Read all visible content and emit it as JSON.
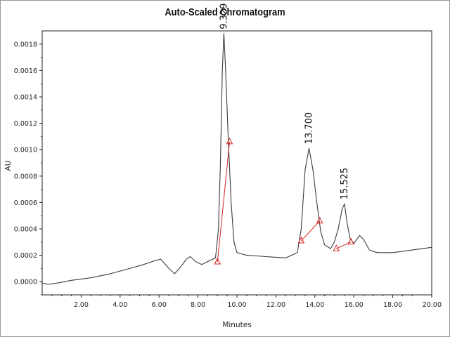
{
  "chart_data": {
    "type": "line",
    "title": "Auto-Scaled Chromatogram",
    "xlabel": "Minutes",
    "ylabel": "AU",
    "xlim": [
      0,
      20
    ],
    "ylim": [
      -0.0001,
      0.0019
    ],
    "x_ticks": [
      2,
      4,
      6,
      8,
      10,
      12,
      14,
      16,
      18,
      20
    ],
    "x_tick_labels": [
      "2.00",
      "4.00",
      "6.00",
      "8.00",
      "10.00",
      "12.00",
      "14.00",
      "16.00",
      "18.00",
      "20.00"
    ],
    "y_ticks": [
      0,
      0.0002,
      0.0004,
      0.0006,
      0.0008,
      0.001,
      0.0012,
      0.0014,
      0.0016,
      0.0018
    ],
    "y_tick_labels": [
      "0.0000",
      "0.0002",
      "0.0004",
      "0.0006",
      "0.0008",
      "0.0010",
      "0.0012",
      "0.0014",
      "0.0016",
      "0.0018"
    ],
    "grid": false,
    "series": [
      {
        "color": "#3a3a3a",
        "points": [
          [
            0.0,
            -1e-05
          ],
          [
            0.3,
            -2e-05
          ],
          [
            0.8,
            -1e-05
          ],
          [
            1.5,
            1e-05
          ],
          [
            2.5,
            3e-05
          ],
          [
            3.5,
            6e-05
          ],
          [
            4.5,
            0.0001
          ],
          [
            5.2,
            0.00013
          ],
          [
            5.8,
            0.00016
          ],
          [
            6.1,
            0.00017
          ],
          [
            6.5,
            0.0001
          ],
          [
            6.8,
            6e-05
          ],
          [
            7.1,
            0.00011
          ],
          [
            7.4,
            0.00017
          ],
          [
            7.6,
            0.00019
          ],
          [
            7.9,
            0.00015
          ],
          [
            8.2,
            0.00013
          ],
          [
            8.6,
            0.00016
          ],
          [
            8.9,
            0.00018
          ],
          [
            9.05,
            0.0004
          ],
          [
            9.15,
            0.0009
          ],
          [
            9.25,
            0.0016
          ],
          [
            9.33,
            0.00188
          ],
          [
            9.42,
            0.0016
          ],
          [
            9.55,
            0.0011
          ],
          [
            9.7,
            0.0006
          ],
          [
            9.85,
            0.0003
          ],
          [
            10.0,
            0.00022
          ],
          [
            10.5,
            0.0002
          ],
          [
            11.5,
            0.00019
          ],
          [
            12.5,
            0.00018
          ],
          [
            13.1,
            0.00022
          ],
          [
            13.3,
            0.0004
          ],
          [
            13.5,
            0.00085
          ],
          [
            13.7,
            0.00101
          ],
          [
            13.9,
            0.00085
          ],
          [
            14.1,
            0.0006
          ],
          [
            14.3,
            0.00038
          ],
          [
            14.5,
            0.00028
          ],
          [
            14.8,
            0.00025
          ],
          [
            15.0,
            0.0003
          ],
          [
            15.2,
            0.0004
          ],
          [
            15.4,
            0.00055
          ],
          [
            15.52,
            0.00059
          ],
          [
            15.65,
            0.00045
          ],
          [
            15.8,
            0.00033
          ],
          [
            16.0,
            0.00029
          ],
          [
            16.3,
            0.00035
          ],
          [
            16.5,
            0.00032
          ],
          [
            16.8,
            0.00024
          ],
          [
            17.2,
            0.00022
          ],
          [
            18.0,
            0.00022
          ],
          [
            19.0,
            0.00024
          ],
          [
            20.0,
            0.00026
          ]
        ]
      }
    ],
    "peaks": [
      {
        "label": "9.329",
        "x": 9.329,
        "y": 0.00188
      },
      {
        "label": "13.700",
        "x": 13.7,
        "y": 0.00101
      },
      {
        "label": "15.525",
        "x": 15.525,
        "y": 0.00059
      }
    ],
    "integration_baselines": [
      {
        "color": "#d82020",
        "from": [
          9.0,
          0.00015
        ],
        "to": [
          9.62,
          0.00106
        ]
      },
      {
        "color": "#d82020",
        "from": [
          13.3,
          0.00031
        ],
        "to": [
          14.25,
          0.00046
        ]
      },
      {
        "color": "#d82020",
        "from": [
          15.1,
          0.00025
        ],
        "to": [
          15.85,
          0.0003
        ]
      }
    ],
    "integration_markers": [
      {
        "x": 9.0,
        "y": 0.00015
      },
      {
        "x": 9.62,
        "y": 0.00106
      },
      {
        "x": 13.3,
        "y": 0.00031
      },
      {
        "x": 14.25,
        "y": 0.00046
      },
      {
        "x": 15.1,
        "y": 0.00025
      },
      {
        "x": 15.85,
        "y": 0.0003
      }
    ]
  }
}
